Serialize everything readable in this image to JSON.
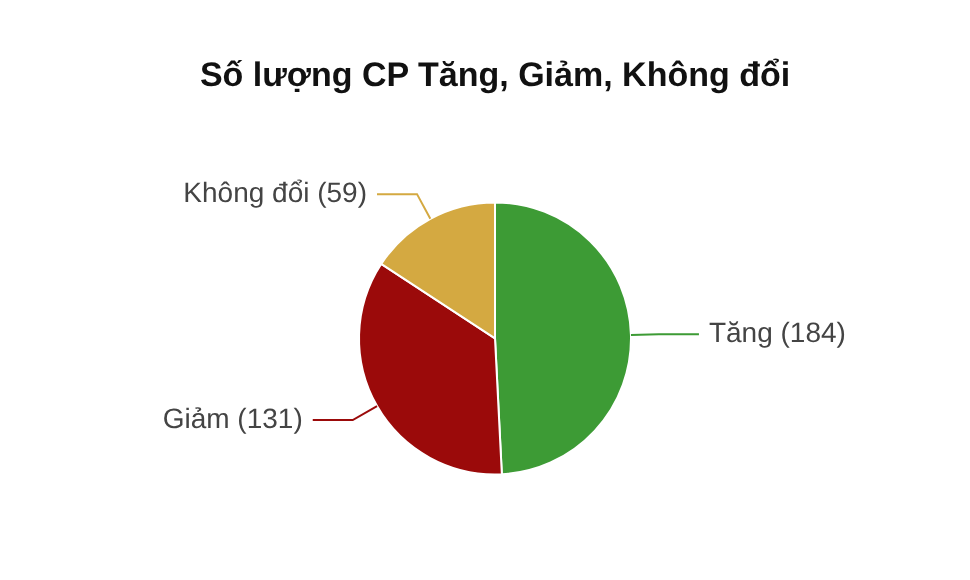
{
  "chart_data": {
    "type": "pie",
    "title": "Số lượng CP Tăng, Giảm, Không đổi",
    "categories": [
      "Tăng",
      "Giảm",
      "Không đổi"
    ],
    "values": [
      184,
      131,
      59
    ],
    "value_labels": [
      "(184)",
      "(131)",
      "(59)"
    ],
    "colors": [
      "#3d9b35",
      "#9b0a0a",
      "#d4a941"
    ],
    "legend": false
  }
}
